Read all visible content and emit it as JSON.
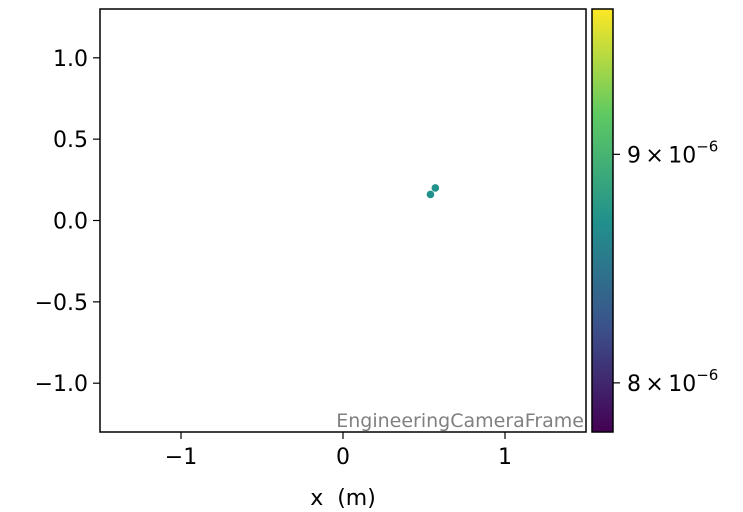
{
  "chart_data": {
    "type": "scatter",
    "xlabel": "x  (m)",
    "ylabel": "",
    "xlim": [
      -1.5,
      1.5
    ],
    "ylim": [
      -1.3,
      1.3
    ],
    "x_ticks": [
      -1,
      0,
      1
    ],
    "x_tick_labels": [
      "−1",
      "0",
      "1"
    ],
    "y_ticks": [
      1.0,
      0.5,
      0.0,
      -0.5,
      -1.0
    ],
    "y_tick_labels": [
      "1.0",
      "0.5",
      "0.0",
      "−0.5",
      "−1.0"
    ],
    "frame_label": "EngineeringCameraFrame",
    "points": [
      {
        "x": 0.57,
        "y": 0.2,
        "c": 8.95e-06
      },
      {
        "x": 0.54,
        "y": 0.16,
        "c": 8.95e-06
      }
    ],
    "point_color": "#21918c",
    "colorbar": {
      "colormap": "viridis",
      "scale": "log",
      "range": [
        7.8e-06,
        9.7e-06
      ],
      "ticks": [
        {
          "value": 9e-06,
          "mantissa": "9",
          "times": "×",
          "base": "10",
          "exponent": "−6"
        },
        {
          "value": 8e-06,
          "mantissa": "8",
          "times": "×",
          "base": "10",
          "exponent": "−6"
        }
      ],
      "stops": [
        "#440154",
        "#3b528b",
        "#21918c",
        "#5ec962",
        "#fde725"
      ]
    }
  }
}
